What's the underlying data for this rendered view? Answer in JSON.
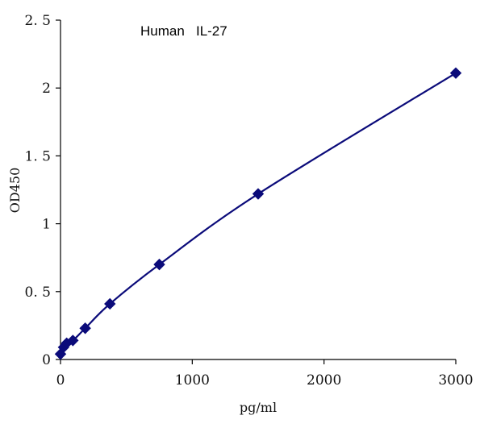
{
  "chart_data": {
    "type": "scatter",
    "title": "Human   IL-27",
    "xlabel": "pg/ml",
    "ylabel": "OD450",
    "xlim": [
      0,
      3000
    ],
    "ylim": [
      0,
      2.5
    ],
    "xticks": [
      0,
      1000,
      2000,
      3000
    ],
    "xtick_labels": [
      "0",
      "1000",
      "2000",
      "3000"
    ],
    "yticks": [
      0,
      0.5,
      1,
      1.5,
      2,
      2.5
    ],
    "ytick_labels": [
      "0",
      "0. 5",
      "1",
      "1. 5",
      "2",
      "2. 5"
    ],
    "grid": false,
    "legend": "none",
    "marker": "diamond",
    "color": "#0b0b7a",
    "series": [
      {
        "x": [
          0,
          23.4,
          46.9,
          93.8,
          187.5,
          375,
          750,
          1500,
          3000
        ],
        "y": [
          0.04,
          0.09,
          0.12,
          0.14,
          0.23,
          0.41,
          0.7,
          1.22,
          2.11
        ],
        "fit": "smooth-curve"
      }
    ]
  }
}
